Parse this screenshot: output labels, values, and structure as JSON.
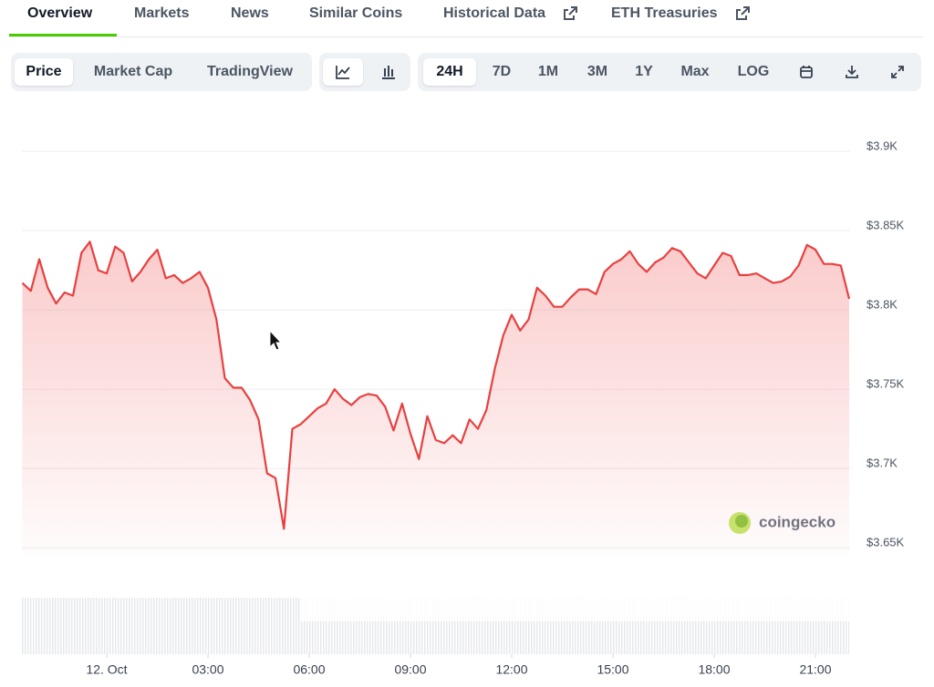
{
  "tabs": [
    "Overview",
    "Markets",
    "News",
    "Similar Coins",
    "Historical Data",
    "ETH Treasuries"
  ],
  "chart_buttons": [
    "Price",
    "Market Cap",
    "TradingView"
  ],
  "range_buttons": [
    "24H",
    "7D",
    "1M",
    "3M",
    "1Y",
    "Max",
    "LOG"
  ],
  "watermark": "coingecko",
  "chart_data": {
    "type": "line",
    "color": "#e8403f",
    "grid": true,
    "x": [
      -2.5,
      -2.25,
      -2,
      -1.75,
      -1.5,
      -1.25,
      -1,
      -0.75,
      -0.5,
      -0.25,
      0,
      0.25,
      0.5,
      0.75,
      1,
      1.25,
      1.5,
      1.75,
      2,
      2.25,
      2.5,
      2.75,
      3,
      3.25,
      3.5,
      3.75,
      4,
      4.25,
      4.5,
      4.75,
      5,
      5.25,
      5.5,
      5.75,
      6,
      6.25,
      6.5,
      6.75,
      7,
      7.25,
      7.5,
      7.75,
      8,
      8.25,
      8.5,
      8.75,
      9,
      9.25,
      9.5,
      9.75,
      10,
      10.25,
      10.5,
      10.75,
      11,
      11.25,
      11.5,
      11.75,
      12,
      12.25,
      12.5,
      12.75,
      13,
      13.25,
      13.5,
      13.75,
      14,
      14.25,
      14.5,
      14.75,
      15,
      15.25,
      15.5,
      15.75,
      16,
      16.25,
      16.5,
      16.75,
      17,
      17.25,
      17.5,
      17.75,
      18,
      18.25,
      18.5,
      18.75,
      19,
      19.25,
      19.5,
      19.75,
      20,
      20.25,
      20.5,
      20.75,
      21,
      21.25,
      21.5,
      21.75,
      22
    ],
    "values": [
      3817,
      3812,
      3832,
      3814,
      3804,
      3811,
      3809,
      3836,
      3843,
      3825,
      3823,
      3840,
      3836,
      3818,
      3824,
      3832,
      3838,
      3820,
      3822,
      3817,
      3820,
      3824,
      3814,
      3794,
      3757,
      3751,
      3751,
      3743,
      3731,
      3697,
      3694,
      3662,
      3725,
      3728,
      3733,
      3738,
      3741,
      3750,
      3744,
      3740,
      3745,
      3747,
      3746,
      3739,
      3724,
      3741,
      3722,
      3706,
      3733,
      3718,
      3716,
      3721,
      3716,
      3731,
      3725,
      3737,
      3763,
      3784,
      3797,
      3787,
      3794,
      3814,
      3809,
      3802,
      3802,
      3808,
      3813,
      3813,
      3810,
      3824,
      3829,
      3832,
      3837,
      3829,
      3824,
      3830,
      3833,
      3839,
      3837,
      3830,
      3823,
      3820,
      3828,
      3836,
      3834,
      3822,
      3822,
      3823,
      3820,
      3817,
      3818,
      3821,
      3828,
      3841,
      3838,
      3829,
      3829,
      3828,
      3807
    ],
    "xlim": [
      -2.5,
      22
    ],
    "xticks": [
      {
        "value": 0,
        "label": "12. Oct"
      },
      {
        "value": 3,
        "label": "03:00"
      },
      {
        "value": 6,
        "label": "06:00"
      },
      {
        "value": 9,
        "label": "09:00"
      },
      {
        "value": 12,
        "label": "12:00"
      },
      {
        "value": 15,
        "label": "15:00"
      },
      {
        "value": 18,
        "label": "18:00"
      },
      {
        "value": 21,
        "label": "21:00"
      }
    ],
    "ylim": [
      3645,
      3915
    ],
    "yticks": [
      {
        "value": 3650,
        "label": "$3.65K"
      },
      {
        "value": 3700,
        "label": "$3.7K"
      },
      {
        "value": 3750,
        "label": "$3.75K"
      },
      {
        "value": 3800,
        "label": "$3.8K"
      },
      {
        "value": 3850,
        "label": "$3.85K"
      },
      {
        "value": 3900,
        "label": "$3.9K"
      }
    ]
  }
}
